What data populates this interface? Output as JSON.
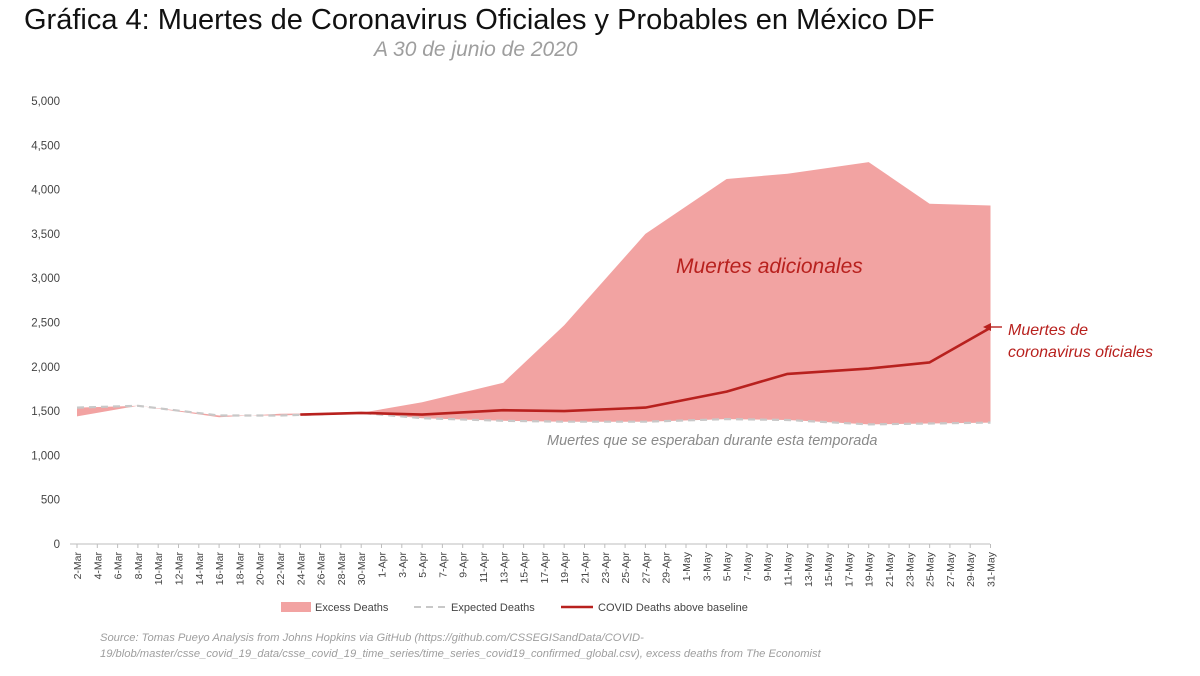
{
  "title": "Gráfica 4: Muertes de Coronavirus Oficiales y Probables en México DF",
  "subtitle": "A 30 de junio de 2020",
  "source": "Source: Tomas Pueyo Analysis from Johns Hopkins via GitHub (https://github.com/CSSEGISandData/COVID-19/blob/master/csse_covid_19_data/csse_covid_19_time_series/time_series_covid19_confirmed_global.csv), excess deaths from The Economist",
  "colors": {
    "excess_fill": "#f2a3a2",
    "expected_line": "#c8c8c8",
    "covid_line": "#b8211e",
    "annotation": "#b8211e",
    "axis_text": "#444444",
    "muted_text": "#8a8a8a"
  },
  "chart_data": {
    "type": "area",
    "ylim": [
      0,
      5000
    ],
    "yticks": [
      0,
      500,
      1000,
      1500,
      2000,
      2500,
      3000,
      3500,
      4000,
      4500,
      5000
    ],
    "ytick_labels": [
      "0",
      "500",
      "1,000",
      "1,500",
      "2,000",
      "2,500",
      "3,000",
      "3,500",
      "4,000",
      "4,500",
      "5,000"
    ],
    "grid": false,
    "legend_position": "bottom",
    "x": [
      "2-Mar",
      "4-Mar",
      "6-Mar",
      "8-Mar",
      "10-Mar",
      "12-Mar",
      "14-Mar",
      "16-Mar",
      "18-Mar",
      "20-Mar",
      "22-Mar",
      "24-Mar",
      "26-Mar",
      "28-Mar",
      "30-Mar",
      "1-Apr",
      "3-Apr",
      "5-Apr",
      "7-Apr",
      "9-Apr",
      "11-Apr",
      "13-Apr",
      "15-Apr",
      "17-Apr",
      "19-Apr",
      "21-Apr",
      "23-Apr",
      "25-Apr",
      "27-Apr",
      "29-Apr",
      "1-May",
      "3-May",
      "5-May",
      "7-May",
      "9-May",
      "11-May",
      "13-May",
      "15-May",
      "17-May",
      "19-May",
      "21-May",
      "23-May",
      "25-May",
      "27-May",
      "29-May",
      "31-May"
    ],
    "series": [
      {
        "name": "Excess Deaths",
        "kind": "area",
        "points": [
          {
            "x": "2-Mar",
            "y": 1440
          },
          {
            "x": "8-Mar",
            "y": 1560
          },
          {
            "x": "16-Mar",
            "y": 1430
          },
          {
            "x": "22-Mar",
            "y": 1470
          },
          {
            "x": "30-Mar",
            "y": 1480
          },
          {
            "x": "5-Apr",
            "y": 1600
          },
          {
            "x": "13-Apr",
            "y": 1820
          },
          {
            "x": "19-Apr",
            "y": 2470
          },
          {
            "x": "27-Apr",
            "y": 3500
          },
          {
            "x": "5-May",
            "y": 4120
          },
          {
            "x": "11-May",
            "y": 4180
          },
          {
            "x": "19-May",
            "y": 4310
          },
          {
            "x": "25-May",
            "y": 3840
          },
          {
            "x": "31-May",
            "y": 3820
          }
        ]
      },
      {
        "name": "Expected Deaths",
        "kind": "dashed-line",
        "points": [
          {
            "x": "2-Mar",
            "y": 1540
          },
          {
            "x": "8-Mar",
            "y": 1560
          },
          {
            "x": "16-Mar",
            "y": 1450
          },
          {
            "x": "22-Mar",
            "y": 1450
          },
          {
            "x": "30-Mar",
            "y": 1480
          },
          {
            "x": "5-Apr",
            "y": 1420
          },
          {
            "x": "13-Apr",
            "y": 1390
          },
          {
            "x": "19-Apr",
            "y": 1380
          },
          {
            "x": "27-Apr",
            "y": 1380
          },
          {
            "x": "5-May",
            "y": 1410
          },
          {
            "x": "11-May",
            "y": 1400
          },
          {
            "x": "19-May",
            "y": 1350
          },
          {
            "x": "25-May",
            "y": 1360
          },
          {
            "x": "31-May",
            "y": 1370
          }
        ]
      },
      {
        "name": "COVID Deaths above baseline",
        "kind": "line",
        "points": [
          {
            "x": "24-Mar",
            "y": 1460
          },
          {
            "x": "30-Mar",
            "y": 1480
          },
          {
            "x": "5-Apr",
            "y": 1460
          },
          {
            "x": "13-Apr",
            "y": 1510
          },
          {
            "x": "19-Apr",
            "y": 1500
          },
          {
            "x": "27-Apr",
            "y": 1540
          },
          {
            "x": "5-May",
            "y": 1720
          },
          {
            "x": "11-May",
            "y": 1920
          },
          {
            "x": "19-May",
            "y": 1980
          },
          {
            "x": "25-May",
            "y": 2050
          },
          {
            "x": "31-May",
            "y": 2440
          }
        ]
      }
    ],
    "annotations": {
      "excess": "Muertes adicionales",
      "official_line1": "Muertes de",
      "official_line2": "coronavirus oficiales",
      "expected": "Muertes que se esperaban durante esta temporada"
    }
  }
}
